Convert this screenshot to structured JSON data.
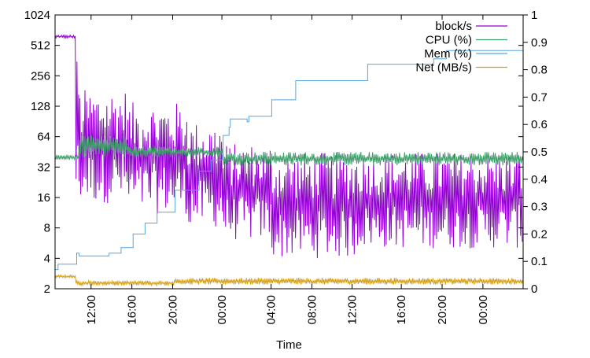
{
  "chart_data": {
    "type": "line",
    "title": "",
    "xlabel": "Time",
    "ylabel": "",
    "y2label": "",
    "yscale": "log2",
    "ylim": [
      2,
      1024
    ],
    "y2lim": [
      0,
      1
    ],
    "xlim_hours": [
      0,
      78
    ],
    "y_ticks": [
      "2",
      "4",
      "8",
      "16",
      "32",
      "64",
      "128",
      "256",
      "512",
      "1024"
    ],
    "y2_ticks": [
      "0",
      "0.1",
      "0.2",
      "0.3",
      "0.4",
      "0.5",
      "0.6",
      "0.7",
      "0.8",
      "0.9",
      "1"
    ],
    "x_ticks": [
      {
        "label": "12:00",
        "hour": 6
      },
      {
        "label": "16:00",
        "hour": 12.8
      },
      {
        "label": "20:00",
        "hour": 19.6
      },
      {
        "label": "00:00",
        "hour": 27.8
      },
      {
        "label": "04:00",
        "hour": 36
      },
      {
        "label": "08:00",
        "hour": 42.8
      },
      {
        "label": "12:00",
        "hour": 49.5
      },
      {
        "label": "16:00",
        "hour": 57.7
      },
      {
        "label": "20:00",
        "hour": 64.5
      },
      {
        "label": "00:00",
        "hour": 71.3
      }
    ],
    "legend": {
      "position": "top-right"
    },
    "series": [
      {
        "name": "block/s",
        "axis": "y1",
        "color": "#9400d3",
        "style": "oscillating",
        "segments": [
          {
            "h0": 0,
            "h1": 3.5,
            "high": 650,
            "low": 600
          },
          {
            "h0": 3.5,
            "h1": 4,
            "high": 400,
            "low": 14
          },
          {
            "h0": 4,
            "h1": 12,
            "high": 190,
            "low": 14
          },
          {
            "h0": 12,
            "h1": 22,
            "high": 140,
            "low": 11
          },
          {
            "h0": 22,
            "h1": 28,
            "high": 90,
            "low": 8
          },
          {
            "h0": 28,
            "h1": 36,
            "high": 55,
            "low": 6
          },
          {
            "h0": 36,
            "h1": 50,
            "high": 45,
            "low": 4
          },
          {
            "h0": 50,
            "h1": 78,
            "high": 45,
            "low": 5
          }
        ]
      },
      {
        "name": "CPU (%)",
        "axis": "y2",
        "color": "#3f9e6a",
        "style": "oscillating",
        "segments": [
          {
            "h0": 0,
            "h1": 4,
            "high": 0.49,
            "low": 0.47
          },
          {
            "h0": 4,
            "h1": 12,
            "high": 0.56,
            "low": 0.48
          },
          {
            "h0": 12,
            "h1": 28,
            "high": 0.52,
            "low": 0.48
          },
          {
            "h0": 28,
            "h1": 78,
            "high": 0.5,
            "low": 0.45
          }
        ]
      },
      {
        "name": "Mem (%)",
        "axis": "y2",
        "color": "#56a6e0",
        "style": "step",
        "points": [
          [
            0,
            0.07
          ],
          [
            0.5,
            0.09
          ],
          [
            3.5,
            0.09
          ],
          [
            3.6,
            0.13
          ],
          [
            4,
            0.12
          ],
          [
            7,
            0.12
          ],
          [
            9,
            0.13
          ],
          [
            11,
            0.15
          ],
          [
            13,
            0.2
          ],
          [
            15,
            0.24
          ],
          [
            17,
            0.28
          ],
          [
            20,
            0.36
          ],
          [
            24,
            0.43
          ],
          [
            26,
            0.47
          ],
          [
            27.9,
            0.49
          ],
          [
            28,
            0.56
          ],
          [
            29,
            0.59
          ],
          [
            29.2,
            0.62
          ],
          [
            32,
            0.61
          ],
          [
            32.3,
            0.63
          ],
          [
            36,
            0.63
          ],
          [
            36.1,
            0.69
          ],
          [
            40,
            0.69
          ],
          [
            40.1,
            0.76
          ],
          [
            52,
            0.76
          ],
          [
            52.1,
            0.82
          ],
          [
            63,
            0.82
          ],
          [
            63.1,
            0.84
          ],
          [
            65,
            0.84
          ],
          [
            65.2,
            0.87
          ],
          [
            78,
            0.87
          ]
        ]
      },
      {
        "name": "Net (MB/s)",
        "axis": "y2",
        "color": "#d4a017",
        "style": "oscillating",
        "segments": [
          {
            "h0": 0,
            "h1": 3.5,
            "high": 0.05,
            "low": 0.04
          },
          {
            "h0": 3.5,
            "h1": 20,
            "high": 0.03,
            "low": 0.012
          },
          {
            "h0": 20,
            "h1": 78,
            "high": 0.04,
            "low": 0.015
          }
        ]
      }
    ]
  }
}
